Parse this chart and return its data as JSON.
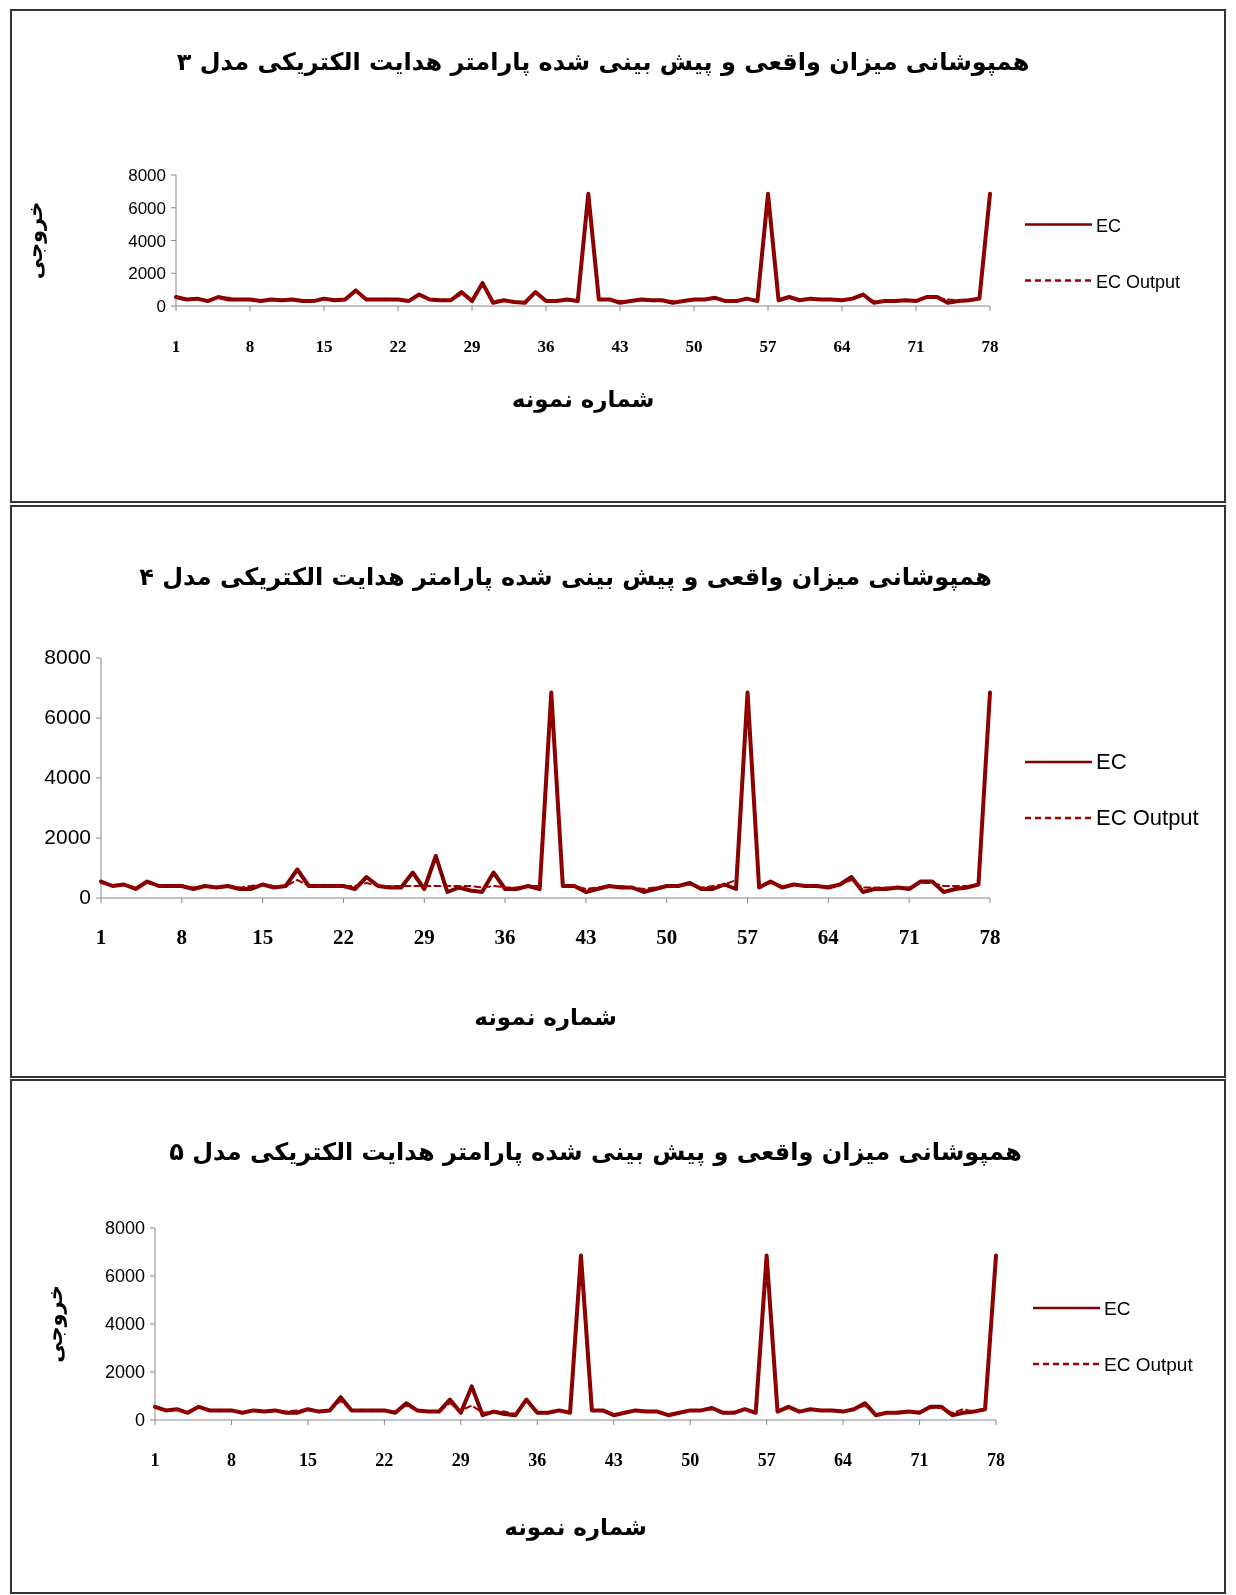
{
  "chart_data": [
    {
      "type": "line",
      "title": "همپوشانی میزان واقعی و پیش بینی شده پارامتر هدایت الکتریکی مدل ۳",
      "xlabel": "شماره نمونه",
      "ylabel": "خروجی",
      "legend": "right",
      "grid": false,
      "x": [
        1,
        2,
        3,
        4,
        5,
        6,
        7,
        8,
        9,
        10,
        11,
        12,
        13,
        14,
        15,
        16,
        17,
        18,
        19,
        20,
        21,
        22,
        23,
        24,
        25,
        26,
        27,
        28,
        29,
        30,
        31,
        32,
        33,
        34,
        35,
        36,
        37,
        38,
        39,
        40,
        41,
        42,
        43,
        44,
        45,
        46,
        47,
        48,
        49,
        50,
        51,
        52,
        53,
        54,
        55,
        56,
        57,
        58,
        59,
        60,
        61,
        62,
        63,
        64,
        65,
        66,
        67,
        68,
        69,
        70,
        71,
        72,
        73,
        74,
        75,
        76,
        77,
        78
      ],
      "xlim": [
        1,
        78
      ],
      "xticks": [
        1,
        8,
        15,
        22,
        29,
        36,
        43,
        50,
        57,
        64,
        71,
        78
      ],
      "ylim": [
        0,
        8000
      ],
      "yticks": [
        0,
        2000,
        4000,
        6000,
        8000
      ],
      "series": [
        {
          "name": "EC",
          "color": "#7f0000",
          "line_style": "solid",
          "values": [
            550,
            400,
            450,
            300,
            550,
            400,
            400,
            400,
            300,
            400,
            350,
            400,
            300,
            300,
            450,
            350,
            400,
            950,
            400,
            400,
            400,
            400,
            300,
            700,
            400,
            350,
            350,
            850,
            300,
            1400,
            200,
            350,
            250,
            200,
            850,
            300,
            300,
            400,
            300,
            6850,
            400,
            400,
            200,
            300,
            400,
            350,
            350,
            200,
            300,
            400,
            400,
            500,
            300,
            300,
            450,
            300,
            6850,
            350,
            550,
            350,
            450,
            400,
            400,
            350,
            450,
            700,
            200,
            300,
            300,
            350,
            300,
            550,
            550,
            200,
            300,
            350,
            450,
            6850
          ]
        },
        {
          "name": "EC Output",
          "color": "#a00000",
          "line_style": "dashed",
          "values": [
            550,
            400,
            450,
            300,
            550,
            500,
            400,
            400,
            300,
            400,
            350,
            400,
            300,
            300,
            450,
            350,
            400,
            900,
            400,
            400,
            400,
            400,
            300,
            650,
            400,
            350,
            350,
            700,
            400,
            1300,
            300,
            350,
            250,
            250,
            800,
            300,
            300,
            400,
            300,
            6850,
            400,
            400,
            300,
            300,
            400,
            350,
            350,
            300,
            300,
            400,
            400,
            500,
            300,
            300,
            450,
            300,
            6850,
            350,
            550,
            350,
            450,
            400,
            400,
            400,
            450,
            650,
            300,
            300,
            300,
            350,
            300,
            550,
            500,
            400,
            350,
            350,
            450,
            6850
          ]
        }
      ]
    },
    {
      "type": "line",
      "title": "همپوشانی میزان واقعی و پیش بینی شده پارامتر هدایت الکتریکی مدل ۴",
      "xlabel": "شماره نمونه",
      "legend": "right",
      "grid": false,
      "x": [
        1,
        2,
        3,
        4,
        5,
        6,
        7,
        8,
        9,
        10,
        11,
        12,
        13,
        14,
        15,
        16,
        17,
        18,
        19,
        20,
        21,
        22,
        23,
        24,
        25,
        26,
        27,
        28,
        29,
        30,
        31,
        32,
        33,
        34,
        35,
        36,
        37,
        38,
        39,
        40,
        41,
        42,
        43,
        44,
        45,
        46,
        47,
        48,
        49,
        50,
        51,
        52,
        53,
        54,
        55,
        56,
        57,
        58,
        59,
        60,
        61,
        62,
        63,
        64,
        65,
        66,
        67,
        68,
        69,
        70,
        71,
        72,
        73,
        74,
        75,
        76,
        77,
        78
      ],
      "xlim": [
        1,
        78
      ],
      "xticks": [
        1,
        8,
        15,
        22,
        29,
        36,
        43,
        50,
        57,
        64,
        71,
        78
      ],
      "ylim": [
        0,
        8000
      ],
      "yticks": [
        0,
        2000,
        4000,
        6000,
        8000
      ],
      "series": [
        {
          "name": "EC",
          "color": "#7f0000",
          "line_style": "solid",
          "values": [
            550,
            400,
            450,
            300,
            550,
            400,
            400,
            400,
            300,
            400,
            350,
            400,
            300,
            300,
            450,
            350,
            400,
            950,
            400,
            400,
            400,
            400,
            300,
            700,
            400,
            350,
            350,
            850,
            300,
            1400,
            200,
            350,
            250,
            200,
            850,
            300,
            300,
            400,
            300,
            6850,
            400,
            400,
            200,
            300,
            400,
            350,
            350,
            200,
            300,
            400,
            400,
            500,
            300,
            300,
            450,
            300,
            6850,
            350,
            550,
            350,
            450,
            400,
            400,
            350,
            450,
            700,
            200,
            300,
            300,
            350,
            300,
            550,
            550,
            200,
            300,
            350,
            450,
            6850
          ]
        },
        {
          "name": "EC Output",
          "color": "#a00000",
          "line_style": "dashed",
          "values": [
            500,
            400,
            450,
            350,
            500,
            400,
            400,
            400,
            350,
            400,
            350,
            400,
            350,
            400,
            450,
            400,
            400,
            600,
            400,
            400,
            400,
            400,
            400,
            500,
            400,
            400,
            400,
            400,
            400,
            400,
            400,
            400,
            400,
            350,
            400,
            350,
            350,
            400,
            400,
            6850,
            400,
            400,
            300,
            350,
            400,
            400,
            350,
            300,
            350,
            400,
            400,
            450,
            350,
            400,
            450,
            600,
            6850,
            400,
            500,
            400,
            450,
            400,
            400,
            400,
            450,
            600,
            350,
            350,
            350,
            350,
            350,
            500,
            500,
            400,
            400,
            400,
            450,
            6850
          ]
        }
      ]
    },
    {
      "type": "line",
      "title": "همپوشانی میزان واقعی و پیش بینی شده پارامتر هدایت الکتریکی مدل ۵",
      "xlabel": "شماره نمونه",
      "ylabel": "خروجی",
      "legend": "right",
      "grid": false,
      "x": [
        1,
        2,
        3,
        4,
        5,
        6,
        7,
        8,
        9,
        10,
        11,
        12,
        13,
        14,
        15,
        16,
        17,
        18,
        19,
        20,
        21,
        22,
        23,
        24,
        25,
        26,
        27,
        28,
        29,
        30,
        31,
        32,
        33,
        34,
        35,
        36,
        37,
        38,
        39,
        40,
        41,
        42,
        43,
        44,
        45,
        46,
        47,
        48,
        49,
        50,
        51,
        52,
        53,
        54,
        55,
        56,
        57,
        58,
        59,
        60,
        61,
        62,
        63,
        64,
        65,
        66,
        67,
        68,
        69,
        70,
        71,
        72,
        73,
        74,
        75,
        76,
        77,
        78
      ],
      "xlim": [
        1,
        78
      ],
      "xticks": [
        1,
        8,
        15,
        22,
        29,
        36,
        43,
        50,
        57,
        64,
        71,
        78
      ],
      "ylim": [
        0,
        8000
      ],
      "yticks": [
        0,
        2000,
        4000,
        6000,
        8000
      ],
      "series": [
        {
          "name": "EC",
          "color": "#7f0000",
          "line_style": "solid",
          "values": [
            550,
            400,
            450,
            300,
            550,
            400,
            400,
            400,
            300,
            400,
            350,
            400,
            300,
            300,
            450,
            350,
            400,
            950,
            400,
            400,
            400,
            400,
            300,
            700,
            400,
            350,
            350,
            850,
            300,
            1400,
            200,
            350,
            250,
            200,
            850,
            300,
            300,
            400,
            300,
            6850,
            400,
            400,
            200,
            300,
            400,
            350,
            350,
            200,
            300,
            400,
            400,
            500,
            300,
            300,
            450,
            300,
            6850,
            350,
            550,
            350,
            450,
            400,
            400,
            350,
            450,
            700,
            200,
            300,
            300,
            350,
            300,
            550,
            550,
            200,
            300,
            350,
            450,
            6850
          ]
        },
        {
          "name": "EC Output",
          "color": "#a00000",
          "line_style": "dashed",
          "values": [
            550,
            400,
            450,
            300,
            550,
            400,
            400,
            400,
            300,
            400,
            350,
            400,
            350,
            400,
            450,
            350,
            400,
            800,
            400,
            400,
            400,
            400,
            350,
            600,
            400,
            350,
            350,
            700,
            400,
            600,
            300,
            350,
            350,
            250,
            800,
            300,
            300,
            400,
            300,
            6850,
            400,
            400,
            250,
            300,
            400,
            350,
            350,
            250,
            300,
            400,
            400,
            450,
            300,
            350,
            450,
            300,
            6850,
            350,
            500,
            350,
            450,
            400,
            400,
            350,
            450,
            600,
            250,
            300,
            350,
            350,
            350,
            500,
            500,
            300,
            450,
            350,
            450,
            6850
          ]
        }
      ]
    }
  ]
}
